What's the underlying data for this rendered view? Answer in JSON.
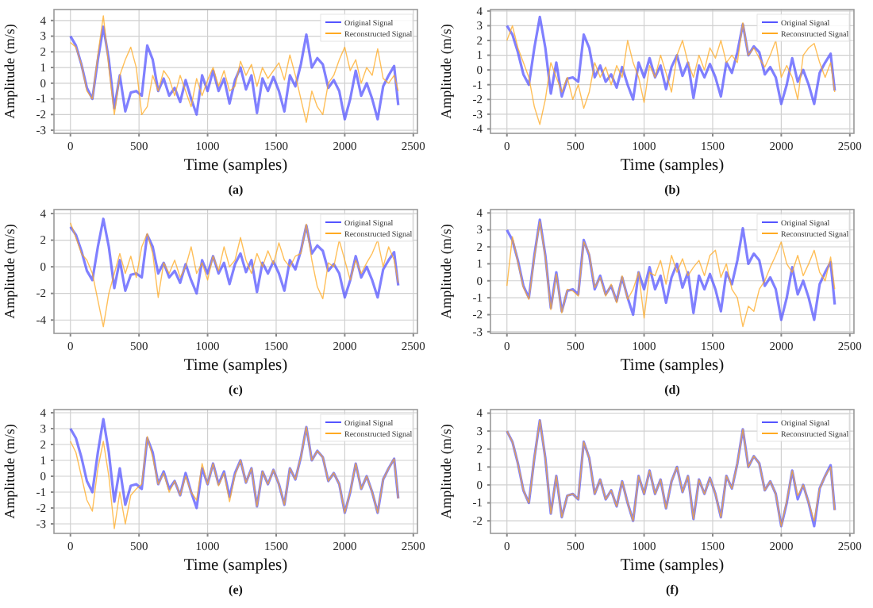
{
  "chart_data": [
    {
      "type": "line",
      "title": "(a)",
      "xlabel": "Time (samples)",
      "ylabel": "Amplitude (m/s)",
      "xlim": [
        -120,
        2530
      ],
      "xticks": [
        0,
        500,
        1000,
        1500,
        2000,
        2500
      ],
      "ylim": [
        -3.2,
        4.7
      ],
      "yticks": [
        -3,
        -2,
        -1,
        0,
        1,
        2,
        3,
        4
      ],
      "grid": true,
      "legend": "top right",
      "x": [
        0,
        40,
        80,
        120,
        160,
        200,
        240,
        280,
        320,
        360,
        400,
        440,
        480,
        520,
        560,
        600,
        640,
        680,
        720,
        760,
        800,
        840,
        880,
        920,
        960,
        1000,
        1040,
        1080,
        1120,
        1160,
        1200,
        1240,
        1280,
        1320,
        1360,
        1400,
        1440,
        1480,
        1520,
        1560,
        1600,
        1640,
        1680,
        1720,
        1760,
        1800,
        1840,
        1880,
        1920,
        1960,
        2000,
        2040,
        2080,
        2120,
        2160,
        2200,
        2240,
        2280,
        2320,
        2360,
        2390
      ],
      "series": [
        {
          "name": "Original Signal",
          "color": "#5555ff",
          "values": [
            3.0,
            2.4,
            1.2,
            -0.3,
            -1.0,
            1.5,
            3.6,
            1.5,
            -1.6,
            0.5,
            -1.8,
            -0.6,
            -0.5,
            -0.8,
            2.4,
            1.5,
            -0.5,
            0.3,
            -0.8,
            -0.3,
            -1.2,
            0.2,
            -1.0,
            -2.0,
            0.5,
            -0.5,
            0.8,
            -0.5,
            0.3,
            -1.3,
            0.2,
            1.0,
            -0.4,
            0.5,
            -1.9,
            0.3,
            -0.5,
            0.4,
            -0.5,
            -1.8,
            0.5,
            -0.2,
            1.2,
            3.1,
            1.0,
            1.6,
            1.2,
            -0.3,
            0.2,
            -0.5,
            -2.3,
            -1.0,
            0.8,
            -0.8,
            0.0,
            -1.0,
            -2.3,
            -0.2,
            0.5,
            1.1,
            -1.4
          ]
        },
        {
          "name": "Reconstructed Signal",
          "color": "#ffaa22",
          "values": [
            2.6,
            2.3,
            1.2,
            -0.5,
            -1.0,
            1.8,
            4.3,
            1.0,
            -2.0,
            0.5,
            1.5,
            2.3,
            1.0,
            -2.0,
            -1.5,
            0.5,
            -0.5,
            0.8,
            0.3,
            -0.8,
            0.5,
            -0.5,
            -1.5,
            0.3,
            -0.8,
            0.2,
            1.0,
            -0.2,
            0.8,
            -0.5,
            -0.2,
            1.4,
            0.5,
            1.2,
            -0.2,
            1.0,
            0.3,
            0.8,
            1.3,
            0.2,
            1.8,
            0.5,
            -1.0,
            -2.5,
            -0.5,
            -1.5,
            -2.0,
            0.0,
            0.5,
            1.5,
            2.3,
            0.8,
            1.5,
            0.0,
            1.0,
            0.5,
            2.2,
            0.3,
            0.0,
            0.5,
            -0.5
          ]
        }
      ]
    },
    {
      "type": "line",
      "title": "(b)",
      "xlabel": "Time (samples)",
      "ylabel": "Amplitude (m/s)",
      "xlim": [
        -120,
        2530
      ],
      "xticks": [
        0,
        500,
        1000,
        1500,
        2000,
        2500
      ],
      "ylim": [
        -4.3,
        4.1
      ],
      "yticks": [
        -4,
        -3,
        -2,
        -1,
        0,
        1,
        2,
        3,
        4
      ],
      "grid": true,
      "legend": "top right",
      "x": [
        0,
        40,
        80,
        120,
        160,
        200,
        240,
        280,
        320,
        360,
        400,
        440,
        480,
        520,
        560,
        600,
        640,
        680,
        720,
        760,
        800,
        840,
        880,
        920,
        960,
        1000,
        1040,
        1080,
        1120,
        1160,
        1200,
        1240,
        1280,
        1320,
        1360,
        1400,
        1440,
        1480,
        1520,
        1560,
        1600,
        1640,
        1680,
        1720,
        1760,
        1800,
        1840,
        1880,
        1920,
        1960,
        2000,
        2040,
        2080,
        2120,
        2160,
        2200,
        2240,
        2280,
        2320,
        2360,
        2390
      ],
      "series": [
        {
          "name": "Original Signal",
          "color": "#5555ff",
          "values": [
            3.0,
            2.4,
            1.2,
            -0.3,
            -1.0,
            1.5,
            3.6,
            1.5,
            -1.6,
            0.5,
            -1.8,
            -0.6,
            -0.5,
            -0.8,
            2.4,
            1.5,
            -0.5,
            0.3,
            -0.8,
            -0.3,
            -1.2,
            0.2,
            -1.0,
            -2.0,
            0.5,
            -0.5,
            0.8,
            -0.5,
            0.3,
            -1.3,
            0.2,
            1.0,
            -0.4,
            0.5,
            -1.9,
            0.3,
            -0.5,
            0.4,
            -0.5,
            -1.8,
            0.5,
            -0.2,
            1.2,
            3.1,
            1.0,
            1.6,
            1.2,
            -0.3,
            0.2,
            -0.5,
            -2.3,
            -1.0,
            0.8,
            -0.8,
            0.0,
            -1.0,
            -2.3,
            -0.2,
            0.5,
            1.1,
            -1.4
          ]
        },
        {
          "name": "Reconstructed Signal",
          "color": "#ffaa22",
          "values": [
            2.0,
            3.0,
            1.5,
            0.5,
            -0.5,
            -2.5,
            -3.7,
            -2.0,
            0.5,
            -0.5,
            -1.5,
            -0.5,
            -2.0,
            -1.0,
            -2.6,
            -1.5,
            0.5,
            -0.5,
            0.2,
            -1.0,
            0.3,
            -0.5,
            2.0,
            0.5,
            -0.5,
            -2.2,
            0.3,
            -0.5,
            1.0,
            -0.2,
            -1.5,
            1.0,
            2.0,
            0.5,
            -0.5,
            1.0,
            0.0,
            1.5,
            0.8,
            2.0,
            0.5,
            1.0,
            0.5,
            3.2,
            1.0,
            1.5,
            0.8,
            0.2,
            1.0,
            2.0,
            -0.5,
            0.3,
            -0.5,
            -2.0,
            1.0,
            1.5,
            1.8,
            0.5,
            -0.5,
            0.5,
            -1.5
          ]
        }
      ]
    },
    {
      "type": "line",
      "title": "(c)",
      "xlabel": "Time (samples)",
      "ylabel": "Amplitude (m/s)",
      "xlim": [
        -120,
        2530
      ],
      "xticks": [
        0,
        500,
        1000,
        1500,
        2000,
        2500
      ],
      "ylim": [
        -5,
        4.3
      ],
      "yticks": [
        -4,
        -2,
        0,
        2,
        4
      ],
      "grid": true,
      "legend": "top right",
      "x": [
        0,
        40,
        80,
        120,
        160,
        200,
        240,
        280,
        320,
        360,
        400,
        440,
        480,
        520,
        560,
        600,
        640,
        680,
        720,
        760,
        800,
        840,
        880,
        920,
        960,
        1000,
        1040,
        1080,
        1120,
        1160,
        1200,
        1240,
        1280,
        1320,
        1360,
        1400,
        1440,
        1480,
        1520,
        1560,
        1600,
        1640,
        1680,
        1720,
        1760,
        1800,
        1840,
        1880,
        1920,
        1960,
        2000,
        2040,
        2080,
        2120,
        2160,
        2200,
        2240,
        2280,
        2320,
        2360,
        2390
      ],
      "series": [
        {
          "name": "Original Signal",
          "color": "#5555ff",
          "values": [
            3.0,
            2.4,
            1.2,
            -0.3,
            -1.0,
            1.5,
            3.6,
            1.5,
            -1.6,
            0.5,
            -1.8,
            -0.6,
            -0.5,
            -0.8,
            2.4,
            1.5,
            -0.5,
            0.3,
            -0.8,
            -0.3,
            -1.2,
            0.2,
            -1.0,
            -2.0,
            0.5,
            -0.5,
            0.8,
            -0.5,
            0.3,
            -1.3,
            0.2,
            1.0,
            -0.4,
            0.5,
            -1.9,
            0.3,
            -0.5,
            0.4,
            -0.5,
            -1.8,
            0.5,
            -0.2,
            1.2,
            3.1,
            1.0,
            1.6,
            1.2,
            -0.3,
            0.2,
            -0.5,
            -2.3,
            -1.0,
            0.8,
            -0.8,
            0.0,
            -1.0,
            -2.3,
            -0.2,
            0.5,
            1.1,
            -1.4
          ]
        },
        {
          "name": "Reconstructed Signal",
          "color": "#ffaa22",
          "values": [
            3.3,
            2.2,
            1.0,
            0.5,
            -0.5,
            -2.5,
            -4.5,
            -2.0,
            -0.5,
            1.0,
            -0.5,
            0.8,
            -0.8,
            1.5,
            2.5,
            1.0,
            -2.3,
            0.3,
            -0.5,
            0.5,
            -0.8,
            0.0,
            1.5,
            -0.5,
            0.3,
            -1.0,
            0.8,
            -0.3,
            1.5,
            0.0,
            0.5,
            2.2,
            0.5,
            -0.5,
            1.0,
            0.0,
            1.2,
            0.2,
            1.8,
            0.5,
            0.0,
            0.8,
            1.0,
            3.2,
            0.5,
            -1.5,
            -2.4,
            0.3,
            0.0,
            2.0,
            0.5,
            -1.0,
            0.5,
            -0.5,
            0.3,
            1.0,
            2.0,
            0.0,
            1.5,
            0.5,
            -1.2
          ]
        }
      ]
    },
    {
      "type": "line",
      "title": "(d)",
      "xlabel": "Time (samples)",
      "ylabel": "Amplitude (m/s)",
      "xlim": [
        -120,
        2530
      ],
      "xticks": [
        0,
        500,
        1000,
        1500,
        2000,
        2500
      ],
      "ylim": [
        -3.1,
        4.2
      ],
      "yticks": [
        -3,
        -2,
        -1,
        0,
        1,
        2,
        3,
        4
      ],
      "grid": true,
      "legend": "top right",
      "x": [
        0,
        40,
        80,
        120,
        160,
        200,
        240,
        280,
        320,
        360,
        400,
        440,
        480,
        520,
        560,
        600,
        640,
        680,
        720,
        760,
        800,
        840,
        880,
        920,
        960,
        1000,
        1040,
        1080,
        1120,
        1160,
        1200,
        1240,
        1280,
        1320,
        1360,
        1400,
        1440,
        1480,
        1520,
        1560,
        1600,
        1640,
        1680,
        1720,
        1760,
        1800,
        1840,
        1880,
        1920,
        1960,
        2000,
        2040,
        2080,
        2120,
        2160,
        2200,
        2240,
        2280,
        2320,
        2360,
        2390
      ],
      "series": [
        {
          "name": "Original Signal",
          "color": "#5555ff",
          "values": [
            3.0,
            2.4,
            1.2,
            -0.3,
            -1.0,
            1.5,
            3.6,
            1.5,
            -1.6,
            0.5,
            -1.8,
            -0.6,
            -0.5,
            -0.8,
            2.4,
            1.5,
            -0.5,
            0.3,
            -0.8,
            -0.3,
            -1.2,
            0.2,
            -1.0,
            -2.0,
            0.5,
            -0.5,
            0.8,
            -0.5,
            0.3,
            -1.3,
            0.2,
            1.0,
            -0.4,
            0.5,
            -1.9,
            0.3,
            -0.5,
            0.4,
            -0.5,
            -1.8,
            0.5,
            -0.2,
            1.2,
            3.1,
            1.0,
            1.6,
            1.2,
            -0.3,
            0.2,
            -0.5,
            -2.3,
            -1.0,
            0.8,
            -0.8,
            0.0,
            -1.0,
            -2.3,
            -0.2,
            0.5,
            1.1,
            -1.4
          ]
        },
        {
          "name": "Reconstructed Signal",
          "color": "#ffaa22",
          "values": [
            -0.3,
            2.6,
            1.1,
            -0.4,
            -1.1,
            1.4,
            3.5,
            1.4,
            -1.7,
            0.4,
            -1.9,
            -0.5,
            -0.6,
            -0.9,
            2.3,
            1.6,
            -0.4,
            0.2,
            -0.9,
            -0.2,
            -1.3,
            0.3,
            -1.1,
            -0.5,
            0.5,
            -2.2,
            0.5,
            0.3,
            1.2,
            -0.2,
            1.5,
            0.5,
            1.3,
            0.3,
            0.8,
            1.2,
            0.3,
            1.5,
            1.8,
            0.2,
            1.0,
            -0.5,
            -1.0,
            -2.7,
            -1.5,
            -1.8,
            -0.5,
            0.0,
            0.8,
            1.5,
            2.3,
            1.0,
            0.5,
            1.5,
            0.3,
            1.0,
            1.8,
            0.5,
            0.0,
            1.4,
            -0.5
          ]
        }
      ]
    },
    {
      "type": "line",
      "title": "(e)",
      "xlabel": "Time (samples)",
      "ylabel": "Amplitude (m/s)",
      "xlim": [
        -120,
        2530
      ],
      "xticks": [
        0,
        500,
        1000,
        1500,
        2000,
        2500
      ],
      "ylim": [
        -3.6,
        4.2
      ],
      "yticks": [
        -3,
        -2,
        -1,
        0,
        1,
        2,
        3,
        4
      ],
      "grid": true,
      "legend": "top right",
      "x": [
        0,
        40,
        80,
        120,
        160,
        200,
        240,
        280,
        320,
        360,
        400,
        440,
        480,
        520,
        560,
        600,
        640,
        680,
        720,
        760,
        800,
        840,
        880,
        920,
        960,
        1000,
        1040,
        1080,
        1120,
        1160,
        1200,
        1240,
        1280,
        1320,
        1360,
        1400,
        1440,
        1480,
        1520,
        1560,
        1600,
        1640,
        1680,
        1720,
        1760,
        1800,
        1840,
        1880,
        1920,
        1960,
        2000,
        2040,
        2080,
        2120,
        2160,
        2200,
        2240,
        2280,
        2320,
        2360,
        2390
      ],
      "series": [
        {
          "name": "Original Signal",
          "color": "#5555ff",
          "values": [
            3.0,
            2.4,
            1.2,
            -0.3,
            -1.0,
            1.5,
            3.6,
            1.5,
            -1.6,
            0.5,
            -1.8,
            -0.6,
            -0.5,
            -0.8,
            2.4,
            1.5,
            -0.5,
            0.3,
            -0.8,
            -0.3,
            -1.2,
            0.2,
            -1.0,
            -2.0,
            0.5,
            -0.5,
            0.8,
            -0.5,
            0.3,
            -1.3,
            0.2,
            1.0,
            -0.4,
            0.5,
            -1.9,
            0.3,
            -0.5,
            0.4,
            -0.5,
            -1.8,
            0.5,
            -0.2,
            1.2,
            3.1,
            1.0,
            1.6,
            1.2,
            -0.3,
            0.2,
            -0.5,
            -2.3,
            -1.0,
            0.8,
            -0.8,
            0.0,
            -1.0,
            -2.3,
            -0.2,
            0.5,
            1.1,
            -1.4
          ]
        },
        {
          "name": "Reconstructed Signal",
          "color": "#ffaa22",
          "values": [
            2.2,
            1.5,
            0.0,
            -1.5,
            -2.2,
            0.5,
            2.2,
            0.0,
            -3.3,
            -1.0,
            -3.0,
            -1.2,
            -0.8,
            -0.5,
            2.5,
            1.2,
            -0.5,
            0.2,
            -1.0,
            -0.3,
            -1.2,
            0.0,
            -1.0,
            -1.5,
            0.8,
            -0.5,
            0.8,
            -0.6,
            0.2,
            -1.6,
            0.1,
            1.0,
            -0.4,
            0.5,
            -1.9,
            0.3,
            -0.5,
            0.4,
            -0.5,
            -1.8,
            0.5,
            -0.2,
            1.2,
            3.1,
            1.0,
            1.6,
            1.2,
            -0.3,
            0.2,
            -0.5,
            -2.3,
            -1.0,
            0.8,
            -0.8,
            0.0,
            -1.0,
            -2.3,
            -0.2,
            0.5,
            1.1,
            -1.4
          ]
        }
      ]
    },
    {
      "type": "line",
      "title": "(f)",
      "xlabel": "Time (samples)",
      "ylabel": "Amplitude (m/s)",
      "xlim": [
        -120,
        2530
      ],
      "xticks": [
        0,
        500,
        1000,
        1500,
        2000,
        2500
      ],
      "ylim": [
        -2.7,
        4.2
      ],
      "yticks": [
        -2,
        -1,
        0,
        1,
        2,
        3,
        4
      ],
      "grid": true,
      "legend": "top right",
      "x": [
        0,
        40,
        80,
        120,
        160,
        200,
        240,
        280,
        320,
        360,
        400,
        440,
        480,
        520,
        560,
        600,
        640,
        680,
        720,
        760,
        800,
        840,
        880,
        920,
        960,
        1000,
        1040,
        1080,
        1120,
        1160,
        1200,
        1240,
        1280,
        1320,
        1360,
        1400,
        1440,
        1480,
        1520,
        1560,
        1600,
        1640,
        1680,
        1720,
        1760,
        1800,
        1840,
        1880,
        1920,
        1960,
        2000,
        2040,
        2080,
        2120,
        2160,
        2200,
        2240,
        2280,
        2320,
        2360,
        2390
      ],
      "series": [
        {
          "name": "Original Signal",
          "color": "#5555ff",
          "values": [
            3.0,
            2.4,
            1.2,
            -0.3,
            -1.0,
            1.5,
            3.6,
            1.5,
            -1.6,
            0.5,
            -1.8,
            -0.6,
            -0.5,
            -0.8,
            2.4,
            1.5,
            -0.5,
            0.3,
            -0.8,
            -0.3,
            -1.2,
            0.2,
            -1.0,
            -2.0,
            0.5,
            -0.5,
            0.8,
            -0.5,
            0.3,
            -1.3,
            0.2,
            1.0,
            -0.4,
            0.5,
            -1.9,
            0.3,
            -0.5,
            0.4,
            -0.5,
            -1.8,
            0.5,
            -0.2,
            1.2,
            3.1,
            1.0,
            1.6,
            1.2,
            -0.3,
            0.2,
            -0.5,
            -2.3,
            -1.0,
            0.8,
            -0.8,
            0.0,
            -1.0,
            -2.3,
            -0.2,
            0.5,
            1.1,
            -1.4
          ]
        },
        {
          "name": "Reconstructed Signal",
          "color": "#ffaa22",
          "values": [
            3.0,
            2.4,
            1.2,
            -0.3,
            -1.0,
            1.5,
            3.6,
            1.5,
            -1.6,
            0.5,
            -1.8,
            -0.6,
            -0.5,
            -0.8,
            2.4,
            1.5,
            -0.5,
            0.3,
            -0.8,
            -0.3,
            -1.2,
            0.2,
            -1.0,
            -2.0,
            0.5,
            -0.5,
            0.8,
            -0.5,
            0.3,
            -1.3,
            0.2,
            1.0,
            -0.4,
            0.5,
            -1.9,
            0.3,
            -0.5,
            0.4,
            -0.5,
            -1.8,
            0.5,
            -0.2,
            1.2,
            3.1,
            1.0,
            1.6,
            1.2,
            -0.3,
            0.2,
            -0.5,
            -2.3,
            -0.9,
            0.8,
            -0.6,
            0.0,
            -1.0,
            -2.0,
            -0.2,
            0.5,
            1.0,
            -1.4
          ]
        }
      ]
    }
  ]
}
